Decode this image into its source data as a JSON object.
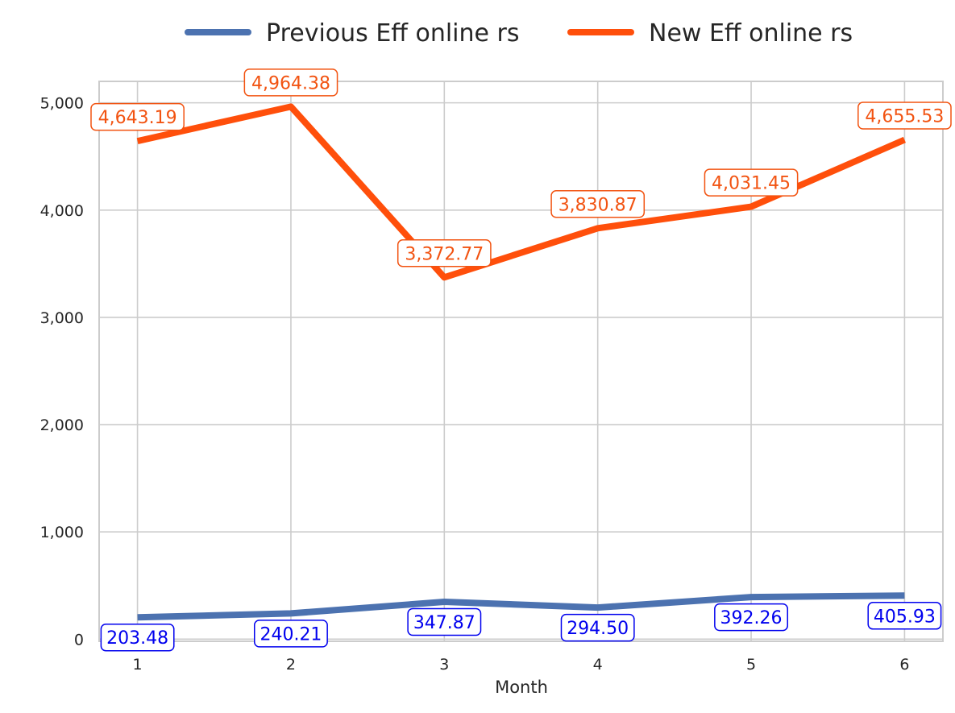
{
  "chart_data": {
    "type": "line",
    "title": "",
    "xlabel": "Month",
    "ylabel": "",
    "categories": [
      "1",
      "2",
      "3",
      "4",
      "5",
      "6"
    ],
    "x": [
      1,
      2,
      3,
      4,
      5,
      6
    ],
    "xlim": [
      0.75,
      6.25
    ],
    "ylim": [
      -20,
      5200
    ],
    "yticks": [
      0,
      1000,
      2000,
      3000,
      4000,
      5000
    ],
    "ytick_labels": [
      "0",
      "1,000",
      "2,000",
      "3,000",
      "4,000",
      "5,000"
    ],
    "grid": true,
    "legend_position": "top-center",
    "series": [
      {
        "name": "Previous Eff online rs",
        "color": "#4c72b0",
        "label_color": "#0000ee",
        "label_position": "below",
        "values": [
          203.48,
          240.21,
          347.87,
          294.5,
          392.26,
          405.93
        ],
        "labels": [
          "203.48",
          "240.21",
          "347.87",
          "294.50",
          "392.26",
          "405.93"
        ]
      },
      {
        "name": "New Eff online rs",
        "color": "#ff4f0b",
        "label_color": "#f25311",
        "label_position": "above",
        "values": [
          4643.19,
          4964.38,
          3372.77,
          3830.87,
          4031.45,
          4655.53
        ],
        "labels": [
          "4,643.19",
          "4,964.38",
          "3,372.77",
          "3,830.87",
          "4,031.45",
          "4,655.53"
        ]
      }
    ]
  }
}
